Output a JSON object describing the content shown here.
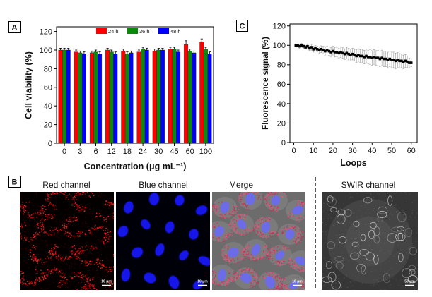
{
  "panel_labels": {
    "a": "A",
    "b": "B",
    "c": "C"
  },
  "chart_data": [
    {
      "type": "bar",
      "categories": [
        "0",
        "3",
        "6",
        "12",
        "18",
        "24",
        "30",
        "45",
        "60",
        "100"
      ],
      "series": [
        {
          "name": "24 h",
          "color": "#ff0000",
          "values": [
            100,
            98,
            97,
            100,
            99,
            98,
            99,
            101,
            106,
            109
          ],
          "errors": [
            2,
            2,
            2,
            2,
            2,
            2,
            2,
            2,
            4,
            3
          ]
        },
        {
          "name": "36 h",
          "color": "#0a8a0a",
          "values": [
            100,
            97,
            98,
            98,
            96,
            101,
            100,
            101,
            99,
            101
          ],
          "errors": [
            2,
            2,
            2,
            2,
            2,
            2,
            2,
            2,
            2,
            2
          ]
        },
        {
          "name": "48 h",
          "color": "#0000ff",
          "values": [
            100,
            96,
            96,
            96,
            97,
            100,
            100,
            98,
            97,
            96
          ],
          "errors": [
            2,
            2,
            2,
            2,
            2,
            2,
            2,
            2,
            2,
            2
          ]
        }
      ],
      "xlabel": "Concentration (μg mL⁻¹)",
      "ylabel": "Cell viability (%)",
      "ylim": [
        0,
        125
      ],
      "yticks": [
        0,
        20,
        40,
        60,
        80,
        100,
        120
      ],
      "legend": "top-center",
      "grid": false
    },
    {
      "type": "scatter",
      "x": [
        1,
        2,
        3,
        4,
        5,
        6,
        7,
        8,
        9,
        10,
        11,
        12,
        13,
        14,
        15,
        16,
        17,
        18,
        19,
        20,
        21,
        22,
        23,
        24,
        25,
        26,
        27,
        28,
        29,
        30,
        31,
        32,
        33,
        34,
        35,
        36,
        37,
        38,
        39,
        40,
        41,
        42,
        43,
        44,
        45,
        46,
        47,
        48,
        49,
        50,
        51,
        52,
        53,
        54,
        55,
        56,
        57,
        58,
        59,
        60
      ],
      "y": [
        100,
        100,
        99,
        100,
        99,
        98,
        99,
        97,
        98,
        96,
        97,
        96,
        95,
        96,
        95,
        94,
        95,
        94,
        93,
        94,
        93,
        93,
        92,
        93,
        92,
        91,
        92,
        91,
        90,
        91,
        90,
        89,
        90,
        89,
        89,
        88,
        89,
        88,
        88,
        87,
        88,
        87,
        87,
        86,
        87,
        86,
        86,
        85,
        86,
        85,
        85,
        84,
        85,
        84,
        84,
        83,
        84,
        83,
        82,
        82
      ],
      "errors": [
        1.5,
        1.5,
        2,
        2,
        2,
        2,
        2.5,
        2.5,
        3,
        3,
        3,
        3,
        3.5,
        3.5,
        4,
        4,
        4,
        4.5,
        4.5,
        5,
        5,
        5,
        5,
        5.5,
        5.5,
        5.5,
        6,
        6,
        6,
        6,
        6,
        6.5,
        6.5,
        6.5,
        7,
        7,
        7,
        7,
        7.5,
        7.5,
        7.5,
        7.5,
        8,
        8,
        8,
        8,
        8,
        8,
        8,
        8,
        8,
        8,
        7.5,
        7.5,
        7,
        7,
        6.5,
        6,
        5,
        4
      ],
      "xlabel": "Loops",
      "ylabel": "Fluorescence signal (%)",
      "xlim": [
        -2,
        63
      ],
      "ylim": [
        0,
        122
      ],
      "xticks": [
        0,
        10,
        20,
        30,
        40,
        50,
        60
      ],
      "yticks": [
        0,
        20,
        40,
        60,
        80,
        100,
        120
      ],
      "marker_color": "#000000",
      "errorbar_color": "#9a9a9a",
      "grid": false
    }
  ],
  "panel_b": {
    "channels": [
      {
        "title": "Red channel",
        "scale_bar": "10 μm"
      },
      {
        "title": "Blue channel",
        "scale_bar": "10 μm"
      },
      {
        "title": "Merge",
        "scale_bar": "10 μm"
      },
      {
        "title": "SWIR channel",
        "scale_bar": "50 μm"
      }
    ]
  }
}
